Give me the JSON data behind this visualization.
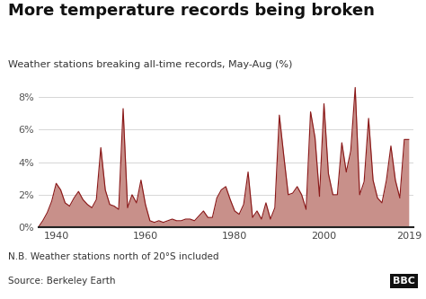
{
  "title": "More temperature records being broken",
  "subtitle": "Weather stations breaking all-time records, May-Aug (%)",
  "note": "N.B. Weather stations north of 20°S included",
  "source": "Source: Berkeley Earth",
  "line_color": "#8B1A1A",
  "fill_color": "#C8908A",
  "background_color": "#ffffff",
  "plot_background": "#ffffff",
  "xlim": [
    1936,
    2020
  ],
  "ylim": [
    0,
    9.2
  ],
  "yticks": [
    0,
    2,
    4,
    6,
    8
  ],
  "ytick_labels": [
    "0%",
    "2%",
    "4%",
    "6%",
    "8%"
  ],
  "xticks": [
    1940,
    1960,
    1980,
    2000,
    2019
  ],
  "years": [
    1936,
    1937,
    1938,
    1939,
    1940,
    1941,
    1942,
    1943,
    1944,
    1945,
    1946,
    1947,
    1948,
    1949,
    1950,
    1951,
    1952,
    1953,
    1954,
    1955,
    1956,
    1957,
    1958,
    1959,
    1960,
    1961,
    1962,
    1963,
    1964,
    1965,
    1966,
    1967,
    1968,
    1969,
    1970,
    1971,
    1972,
    1973,
    1974,
    1975,
    1976,
    1977,
    1978,
    1979,
    1980,
    1981,
    1982,
    1983,
    1984,
    1985,
    1986,
    1987,
    1988,
    1989,
    1990,
    1991,
    1992,
    1993,
    1994,
    1995,
    1996,
    1997,
    1998,
    1999,
    2000,
    2001,
    2002,
    2003,
    2004,
    2005,
    2006,
    2007,
    2008,
    2009,
    2010,
    2011,
    2012,
    2013,
    2014,
    2015,
    2016,
    2017,
    2018,
    2019
  ],
  "values": [
    0.0,
    0.4,
    0.9,
    1.6,
    2.7,
    2.3,
    1.5,
    1.3,
    1.8,
    2.2,
    1.7,
    1.4,
    1.2,
    1.7,
    4.9,
    2.3,
    1.4,
    1.3,
    1.1,
    7.3,
    1.2,
    2.0,
    1.5,
    2.9,
    1.4,
    0.4,
    0.3,
    0.4,
    0.3,
    0.4,
    0.5,
    0.4,
    0.4,
    0.5,
    0.5,
    0.4,
    0.7,
    1.0,
    0.6,
    0.6,
    1.8,
    2.3,
    2.5,
    1.7,
    1.0,
    0.8,
    1.4,
    3.4,
    0.6,
    1.0,
    0.5,
    1.5,
    0.5,
    1.2,
    6.9,
    4.4,
    2.0,
    2.1,
    2.5,
    2.0,
    1.1,
    7.1,
    5.5,
    1.9,
    7.6,
    3.3,
    2.0,
    2.0,
    5.2,
    3.4,
    4.7,
    8.6,
    2.0,
    2.8,
    6.7,
    2.9,
    1.8,
    1.5,
    2.9,
    5.0,
    2.9,
    1.8,
    5.4,
    5.4
  ]
}
